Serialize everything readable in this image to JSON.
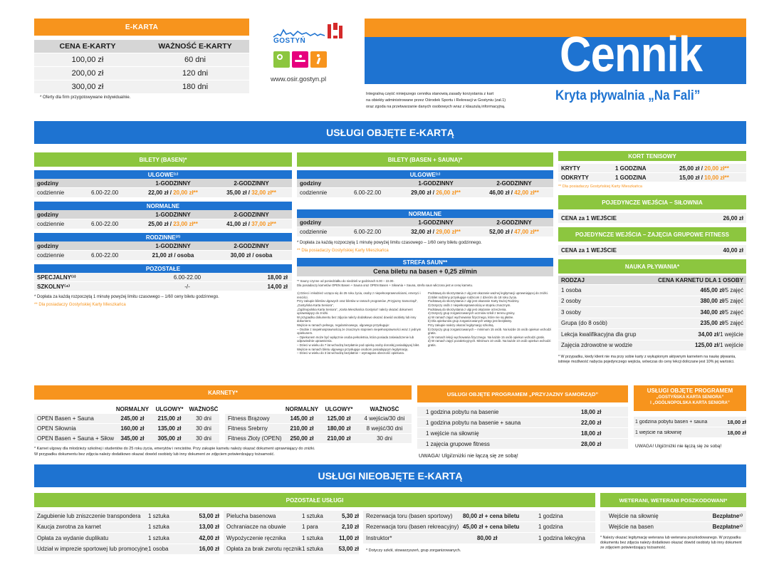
{
  "ekarta": {
    "title": "E-KARTA",
    "col1": "CENA E-KARTY",
    "col2": "WAŻNOŚĆ E-KARTY",
    "rows": [
      [
        "100,00 zł",
        "60 dni"
      ],
      [
        "200,00 zł",
        "120 dni"
      ],
      [
        "300,00 zł",
        "180 dni"
      ]
    ],
    "note": "* Oferty dla firm przygotowywane indywidualnie."
  },
  "logo": {
    "name": "GOSTYŃ",
    "website": "www.osir.gostyn.pl"
  },
  "intro": [
    "Integralną część niniejszego cennika stanowią zasady korzystania z kart",
    "na obiekty administrowane przez Ośrodek Sportu i Rekreacji w Gostyniu (zał.1)",
    "oraz zgoda na przetwarzanie danych osobowych wraz z klauzulą informacyjną."
  ],
  "header": {
    "title": "Cennik",
    "subtitle": "Kryta pływalnia „Na Fali”"
  },
  "sec1": "USŁUGI OBJĘTE E-KARTĄ",
  "sec2": "USŁUGI NIEOBJĘTE E-KARTĄ",
  "basen": {
    "title": "BILETY (BASEN)*",
    "ulgowe": "ULGOWE⁽¹⁾",
    "normalne": "NORMALNE",
    "rodzinne": "RODZINNE⁽²⁾",
    "pozostale": "POZOSTAŁE",
    "godziny": "godziny",
    "h1": "1-GODZINNY",
    "h2": "2-GODZINNY",
    "codziennie": "codziennie",
    "hours": "6.00-22.00",
    "u1": "22,00 zł / ",
    "u1o": "20,00 zł**",
    "u2": "35,00 zł / ",
    "u2o": "32,00 zł**",
    "n1": "25,00 zł / ",
    "n1o": "23,00 zł**",
    "n2": "41,00 zł / ",
    "n2o": "37,00 zł**",
    "r1": "21,00 zł / osoba",
    "r2": "30,00 zł / osoba",
    "spec": "SPECJALNY⁽³⁾",
    "spech": "6.00-22.00",
    "specp": "18,00 zł",
    "szk": "SZKOLNY⁽⁴⁾",
    "szkh": "-/-",
    "szkp": "14,00 zł",
    "note1": "* Dopłata za każdą rozpoczętą 1 minutę powyżej limitu czasowego – 1/60 ceny biletu godzinnego.",
    "note2": "** Dla posiadaczy Gostyńskiej Karty Mieszkańca"
  },
  "sauna": {
    "title": "BILETY (BASEN + SAUNA)*",
    "ulgowe": "ULGOWE⁽¹⁾",
    "normalne": "NORMALNE",
    "godziny": "godziny",
    "h1": "1-GODZINNY",
    "h2": "2-GODZINNY",
    "codziennie": "codziennie",
    "hours": "6.00-22.00",
    "u1": "29,00 zł / ",
    "u1o": "26,00 zł**",
    "u2": "46,00 zł / ",
    "u2o": "42,00 zł**",
    "n1": "32,00 zł / ",
    "n1o": "29,00 zł**",
    "n2": "52,00 zł / ",
    "n2o": "47,00 zł**",
    "note1": "* Dopłata za każdą rozpoczętą 1 minutę powyżej limitu czasowego – 1/60 ceny biletu godzinnego.",
    "note2": "** Dla posiadaczy Gostyńskiej Karty Mieszkańca",
    "strefa": "STREFA SAUN**",
    "strefa_price": "Cena biletu na basen + 0,25 zł/min",
    "strefa_note1": "** Sauny czynne od poniedziałku do niedzieli w godzinach 6.00 – 22.00.",
    "strefa_note2": "Dla posiadaczy karnetów OPEN Basen + Sauna oraz OPEN Basen + Siłownia + Sauna, strefa saun wliczona jest w cenę karnetu.",
    "fine_left": [
      "1) Dzieci i młodzież ucząca się do 25 roku życia, osoby z niepełnosprawnościami, emeryci i renciści.",
      "Przy zakupie biletów ulgowych oraz biletów w ramach programów „Przyjazny Samorząd”, „Gostyńska Karta Seniora”,",
      "„Ogólnopolska Karta Seniora”, „Karta Mieszkańca Gostynia” należy okazać dokument uprawniający do zniżki.",
      "W przypadku dokumentu bez zdjęcia należy dodatkowo okazać dowód osobisty lub inny dokument.",
      "Wejście w ramach pełnego, regulaminowego, ulgowego przysługuje:",
      "– Osobie z niepełnosprawnością ze znacznym stopniem niepełnosprawności wraz z jednym opiekunem.",
      "– Opiekunem może być wyłącznie osoba pełnoletnia, która posiada zaświadczenie lub odpowiednie uprawnienia.",
      "– Dzieci w wieku do 7 lat wchodzą bezpłatnie pod opieką osoby dorosłej posiadającej bilet.",
      "Wejście w ramach biletu ulgowego przysługuje osobom posiadającym legitymację.",
      "– Dzieci w wieku do 3 lat wchodzą bezpłatnie – wymagana obecność opiekuna."
    ],
    "fine_right": [
      "Podstawą do skorzystania z ulg jest okazanie ważnej legitymacji uprawniającej do zniżki.",
      "2) Bilet rodzinny przysługuje rodzicom z dziećmi do 18 roku życia.",
      "Podstawą do skorzystania z ulgi jest okazanie Karty Dużej Rodziny.",
      "3) Dotyczy osób z niepełnosprawnością w stopniu znacznym.",
      "Podstawą do skorzystania z ulgi jest okazanie orzeczenia.",
      "4) Dotyczy grup zorganizowanych uczniów szkół z terenu gminy.",
      "a) W ramach zajęć wychowania fizycznego, które nie są płatne.",
      "b) Dla opiekunów grup zorganizowanych wstęp jest bezpłatny.",
      "Przy zakupie należy okazać legitymację szkolną.",
      "b) Dotyczy grup zorganizowanych – minimum 15 osób. Na każde 15 osób opiekun wchodzi gratis.",
      "c) W ramach lekcji wychowania fizycznego. Na każde 15 osób opiekun wchodzi gratis.",
      "d) W ramach zajęć pozalekcyjnych. Minimum 10 osób. Na każde 10 osób opiekun wchodzi gratis."
    ]
  },
  "kort": {
    "title": "KORT TENISOWY",
    "rows": [
      [
        "KRYTY",
        "1 GODZINA",
        "25,00 zł / ",
        "20,00 zł**"
      ],
      [
        "ODKRYTY",
        "1 GODZINA",
        "15,00 zł / ",
        "10,00 zł**"
      ]
    ],
    "note": "** Dla posiadaczy Gostyńskiej Karty Mieszkańca"
  },
  "silownia": {
    "title": "POJEDYNCZE WEJŚCIA – SIŁOWNIA",
    "label": "CENA za 1 WEJŚCIE",
    "price": "26,00 zł"
  },
  "fitness": {
    "title": "POJEDYNCZE WEJŚCIA – ZAJĘCIA GRUPOWE FITNESS",
    "label": "CENA za 1 WEJŚCIE",
    "price": "40,00 zł"
  },
  "nauka": {
    "title": "NAUKA PŁYWANIA*",
    "col1": "RODZAJ",
    "col2": "CENA KARNETU DLA 1 OSOBY",
    "rows": [
      [
        "1 osoba",
        "465,00 zł",
        "/5 zajęć"
      ],
      [
        "2 osoby",
        "380,00 zł",
        "/5 zajęć"
      ],
      [
        "3 osoby",
        "340,00 zł",
        "/5 zajęć"
      ],
      [
        "Grupa (do 8 osób)",
        "235,00 zł",
        "/5 zajęć"
      ],
      [
        "Lekcja kwalifikacyjna dla grup",
        "34,00 zł",
        "/1 wejście"
      ],
      [
        "Zajęcia zdrowotne w wodzie",
        "125,00 zł",
        "/1 wejście"
      ]
    ],
    "note": "* W przypadku, kiedy klient nie ma przy sobie karty z wykupionym aktywnym karnetem na naukę pływania, istnieje możliwość nabycia pojedynczego wejścia, wówczas do ceny lekcji doliczane jest 10% jej wartości."
  },
  "karnety": {
    "title": "KARNETY*",
    "h_normal": "NORMALNY",
    "h_ulgowy": "ULGOWY*",
    "h_waznosc": "WAŻNOŚĆ",
    "left": [
      [
        "OPEN Basen + Sauna",
        "245,00 zł",
        "215,00 zł",
        "30 dni"
      ],
      [
        "OPEN Siłownia",
        "160,00 zł",
        "135,00 zł",
        "30 dni"
      ],
      [
        "OPEN Basen + Sauna + Siłownia",
        "345,00 zł",
        "305,00 zł",
        "30 dni"
      ]
    ],
    "right": [
      [
        "Fitness Brązowy",
        "145,00 zł",
        "125,00 zł",
        "4 wejścia/30 dni"
      ],
      [
        "Fitness Srebrny",
        "210,00 zł",
        "180,00 zł",
        "8 wejść/30 dni"
      ],
      [
        "Fitness Złoty (OPEN)",
        "250,00 zł",
        "210,00 zł",
        "30 dni"
      ]
    ],
    "note1": "* Karnet ulgowy dla młodzieży szkolnej i studentów do 25 roku życia, emerytów i rencistów. Przy zakupie karnetu należy okazać dokument uprawniający do zniżki.",
    "note2": "W przypadku dokumentu bez zdjęcia należy dodatkowo okazać dowód osobisty lub inny dokument ze zdjęciem potwierdzający tożsamość."
  },
  "samorzad": {
    "title": "USŁUGI OBJĘTE PROGRAMEM „PRZYJAZNY SAMORZĄD”",
    "rows": [
      [
        "1 godzina pobytu na basenie",
        "18,00 zł"
      ],
      [
        "1 godzina pobytu na basenie + sauna",
        "22,00 zł"
      ],
      [
        "1 wejście na siłownię",
        "18,00 zł"
      ],
      [
        "1 zajęcia grupowe fitness",
        "28,00 zł"
      ]
    ],
    "note": "UWAGA! Ulgi/zniżki nie łączą się ze sobą!"
  },
  "senior": {
    "title1": "USŁUGI OBJĘTE PROGRAMEM",
    "title2": "„GOSTYŃSKA KARTA SENIORA”",
    "title3": "I „OGÓLNOPOLSKA KARTA SENIORA”",
    "rows": [
      [
        "1 godzina pobytu basen + sauna",
        "18,00 zł"
      ],
      [
        "1 wejście na siłownię",
        "18,00 zł"
      ]
    ],
    "note": "UWAGA! Ulgi/zniżki nie łączą się ze sobą!"
  },
  "pozostale": {
    "title": "POZOSTAŁE USŁUGI",
    "c1": [
      [
        "Zagubienie lub zniszczenie transpondera",
        "1 sztuka",
        "53,00 zł"
      ],
      [
        "Kaucja zwrotna za karnet",
        "1 sztuka",
        "13,00 zł"
      ],
      [
        "Opłata za wydanie duplikatu",
        "1 sztuka",
        "42,00 zł"
      ],
      [
        "Udział w imprezie sportowej lub promocyjnej",
        "1 osoba",
        "16,00 zł"
      ]
    ],
    "c2": [
      [
        "Pielucha basenowa",
        "1 sztuka",
        "5,30 zł"
      ],
      [
        "Ochraniacze na obuwie",
        "1 para",
        "2,10 zł"
      ],
      [
        "Wypożyczenie ręcznika",
        "1 sztuka",
        "11,00 zł"
      ],
      [
        "Opłata za brak zwrotu ręcznika",
        "1 sztuka",
        "53,00 zł"
      ]
    ],
    "c3": [
      [
        "Rezerwacja toru (basen sportowy)",
        "80,00 zł + cena biletu",
        "1 godzina"
      ],
      [
        "Rezerwacja toru (basen rekreacyjny)",
        "45,00 zł + cena biletu",
        "1 godzina"
      ],
      [
        "Instruktor*",
        "80,00 zł",
        "1 godzina lekcyjna"
      ]
    ],
    "note": "* Dotyczy szkół, stowarzyszeń, grup zorganizowanych."
  },
  "weterani": {
    "title": "WETERANI, WETERANI POSZKODOWANI*",
    "rows": [
      [
        "Wejście na siłownię",
        "Bezpłatne¹⁾"
      ],
      [
        "Wejście na basen",
        "Bezpłatne¹⁾"
      ]
    ],
    "note": "* Należy okazać legitymację weterana lub weterana poszkodowanego. W przypadku dokumentu bez zdjęcia należy dodatkowo okazać dowód osobisty lub inny dokument ze zdjęciem potwierdzający tożsamość."
  },
  "colors": {
    "orange": "#f7941d",
    "green": "#8cc63f",
    "blue": "#1e73d1"
  }
}
